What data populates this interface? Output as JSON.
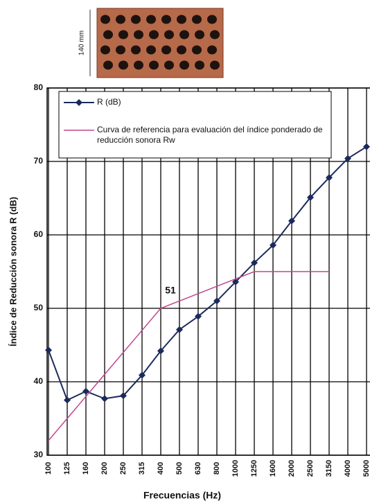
{
  "figure": {
    "dimension_label": "140 mm"
  },
  "chart_data": {
    "type": "line",
    "x_label": "Frecuencias (Hz)",
    "y_label": "Índice de Reducción sonora R (dB)",
    "categories": [
      "100",
      "125",
      "160",
      "200",
      "250",
      "315",
      "400",
      "500",
      "630",
      "800",
      "1000",
      "1250",
      "1600",
      "2000",
      "2500",
      "3150",
      "4000",
      "5000"
    ],
    "series": [
      {
        "name": "R (dB)",
        "color": "#1b2a5c",
        "marker": "diamond",
        "values": [
          44.3,
          37.5,
          38.7,
          37.7,
          38.1,
          40.9,
          44.2,
          47.1,
          48.9,
          51.0,
          53.6,
          56.2,
          58.6,
          61.9,
          65.1,
          67.8,
          70.4,
          72
        ]
      },
      {
        "name": "Curva de referencia para evaluación del índice ponderado de reducción sonora Rw",
        "color": "#c2448e",
        "values": [
          32,
          35,
          38,
          41,
          44,
          47,
          50,
          51,
          52,
          53,
          54,
          55,
          55,
          55,
          55,
          55,
          null,
          null
        ]
      }
    ],
    "annotations": [
      {
        "text": "51"
      }
    ],
    "ylim": [
      30,
      80
    ],
    "yticks": [
      30,
      40,
      50,
      60,
      70,
      80
    ],
    "grid": true
  }
}
